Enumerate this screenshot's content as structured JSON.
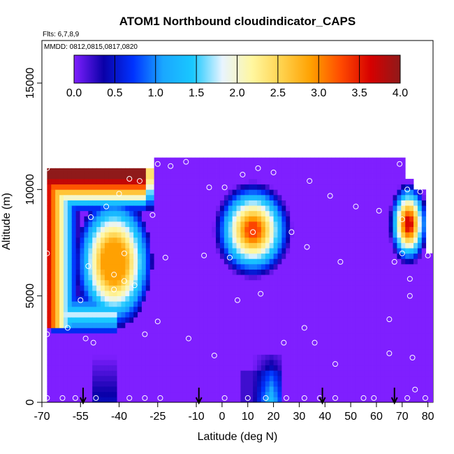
{
  "chart_data": {
    "type": "heatmap",
    "title": "ATOM1 Northbound cloudindicator_CAPS",
    "note_flights": "Flts: 6,7,8,9",
    "note_dates": "MMDD: 0812,0815,0817,0820",
    "xlabel": "Latitude (deg N)",
    "ylabel": "Altitude (m)",
    "xlim": [
      -70,
      82
    ],
    "ylim": [
      0,
      17000
    ],
    "x_ticks": [
      -70,
      -55,
      -40,
      -25,
      -10,
      0,
      10,
      20,
      30,
      40,
      50,
      60,
      70,
      80
    ],
    "x_tick_labels": [
      "-70",
      "-55",
      "-40",
      "-25",
      "-10",
      "0",
      "10",
      "20",
      "30",
      "40",
      "50",
      "60",
      "70",
      "80"
    ],
    "y_ticks": [
      0,
      5000,
      10000,
      15000
    ],
    "y_tick_labels": [
      "0",
      "5000",
      "10000",
      "15000"
    ],
    "colorbar": {
      "range": [
        0,
        4
      ],
      "ticks": [
        "0.0",
        "0.5",
        "1.0",
        "1.5",
        "2.0",
        "2.5",
        "3.0",
        "3.5",
        "4.0"
      ],
      "stops": [
        "#7f1fff",
        "#0a00a8",
        "#0033ff",
        "#1aa7ff",
        "#19c8ff",
        "#e8f4ff",
        "#fff7a0",
        "#ffd24d",
        "#ffa000",
        "#ff4a00",
        "#d60000",
        "#8f1a1a"
      ]
    },
    "background_value": 0.0,
    "data_extent": {
      "x": [
        -68,
        82
      ],
      "y_top_segments": [
        {
          "x": [
            -68,
            -26
          ],
          "y_top": 11000
        },
        {
          "x": [
            -26,
            29
          ],
          "y_top": 11500
        },
        {
          "x": [
            29,
            30
          ],
          "y_top": 12000
        },
        {
          "x": [
            30,
            71
          ],
          "y_top": 11500
        },
        {
          "x": [
            71,
            75
          ],
          "y_top": 10500
        },
        {
          "x": [
            75,
            80
          ],
          "y_top": 10000
        },
        {
          "x": [
            80,
            82
          ],
          "y_top": 7000
        }
      ]
    },
    "cloud_features": [
      {
        "id": "south-upper",
        "x": [
          -68,
          -25
        ],
        "y": [
          9000,
          11000
        ],
        "peak": 4.0
      },
      {
        "id": "south-left-column",
        "x": [
          -68,
          -58
        ],
        "y": [
          3500,
          10500
        ],
        "peak": 3.8
      },
      {
        "id": "south-middle",
        "x": [
          -55,
          -30
        ],
        "y": [
          4000,
          9000
        ],
        "peak": 2.7
      },
      {
        "id": "south-bottom-band",
        "x": [
          -68,
          -40
        ],
        "y": [
          3200,
          5200
        ],
        "peak": 1.6
      },
      {
        "id": "south-surface",
        "x": [
          -50,
          -40
        ],
        "y": [
          0,
          2200
        ],
        "peak": 0.5
      },
      {
        "id": "mid-altitude",
        "x": [
          -3,
          30
        ],
        "y": [
          5500,
          10000
        ],
        "peak": 3.3
      },
      {
        "id": "tropical-surface",
        "x": [
          3,
          24
        ],
        "y": [
          0,
          2200
        ],
        "peak": 1.2
      },
      {
        "id": "north",
        "x": [
          66,
          80
        ],
        "y": [
          6000,
          10000
        ],
        "peak": 3.6
      }
    ],
    "flight_points": [
      [
        -68,
        11000
      ],
      [
        -68,
        7000
      ],
      [
        -68,
        3200
      ],
      [
        -68,
        200
      ],
      [
        -62,
        200
      ],
      [
        -60,
        3500
      ],
      [
        -57,
        200
      ],
      [
        -55,
        4800
      ],
      [
        -53,
        3000
      ],
      [
        -52,
        6400
      ],
      [
        -51,
        8700
      ],
      [
        -50,
        2800
      ],
      [
        -49,
        200
      ],
      [
        -45,
        9200
      ],
      [
        -42,
        6000
      ],
      [
        -42,
        5300
      ],
      [
        -40,
        9800
      ],
      [
        -38,
        7000
      ],
      [
        -38,
        5700
      ],
      [
        -36,
        10500
      ],
      [
        -36,
        200
      ],
      [
        -34,
        5500
      ],
      [
        -32,
        10400
      ],
      [
        -30,
        3200
      ],
      [
        -30,
        200
      ],
      [
        -27,
        8800
      ],
      [
        -25,
        11200
      ],
      [
        -25,
        3800
      ],
      [
        -24,
        200
      ],
      [
        -22,
        6800
      ],
      [
        -20,
        11100
      ],
      [
        -14,
        11300
      ],
      [
        -13,
        3000
      ],
      [
        -7,
        6900
      ],
      [
        -5,
        10100
      ],
      [
        -3,
        2200
      ],
      [
        1,
        10100
      ],
      [
        1,
        200
      ],
      [
        3,
        6800
      ],
      [
        6,
        4800
      ],
      [
        8,
        10700
      ],
      [
        10,
        200
      ],
      [
        12,
        8000
      ],
      [
        14,
        11000
      ],
      [
        15,
        5100
      ],
      [
        17,
        200
      ],
      [
        20,
        10800
      ],
      [
        24,
        2800
      ],
      [
        25,
        200
      ],
      [
        27,
        8000
      ],
      [
        32,
        200
      ],
      [
        32,
        3500
      ],
      [
        33,
        7300
      ],
      [
        34,
        10400
      ],
      [
        36,
        2800
      ],
      [
        38,
        200
      ],
      [
        42,
        9700
      ],
      [
        44,
        200
      ],
      [
        44,
        1800
      ],
      [
        46,
        6600
      ],
      [
        52,
        9200
      ],
      [
        55,
        200
      ],
      [
        59,
        200
      ],
      [
        61,
        9000
      ],
      [
        65,
        3900
      ],
      [
        65,
        2300
      ],
      [
        67,
        6600
      ],
      [
        69,
        11200
      ],
      [
        70,
        8600
      ],
      [
        70,
        7000
      ],
      [
        72,
        10000
      ],
      [
        72,
        200
      ],
      [
        73,
        5000
      ],
      [
        73,
        5800
      ],
      [
        74,
        2100
      ],
      [
        75,
        600
      ],
      [
        77,
        9900
      ],
      [
        79,
        200
      ],
      [
        80,
        6900
      ]
    ],
    "profile_markers": [
      -54,
      -9,
      39,
      67
    ]
  }
}
